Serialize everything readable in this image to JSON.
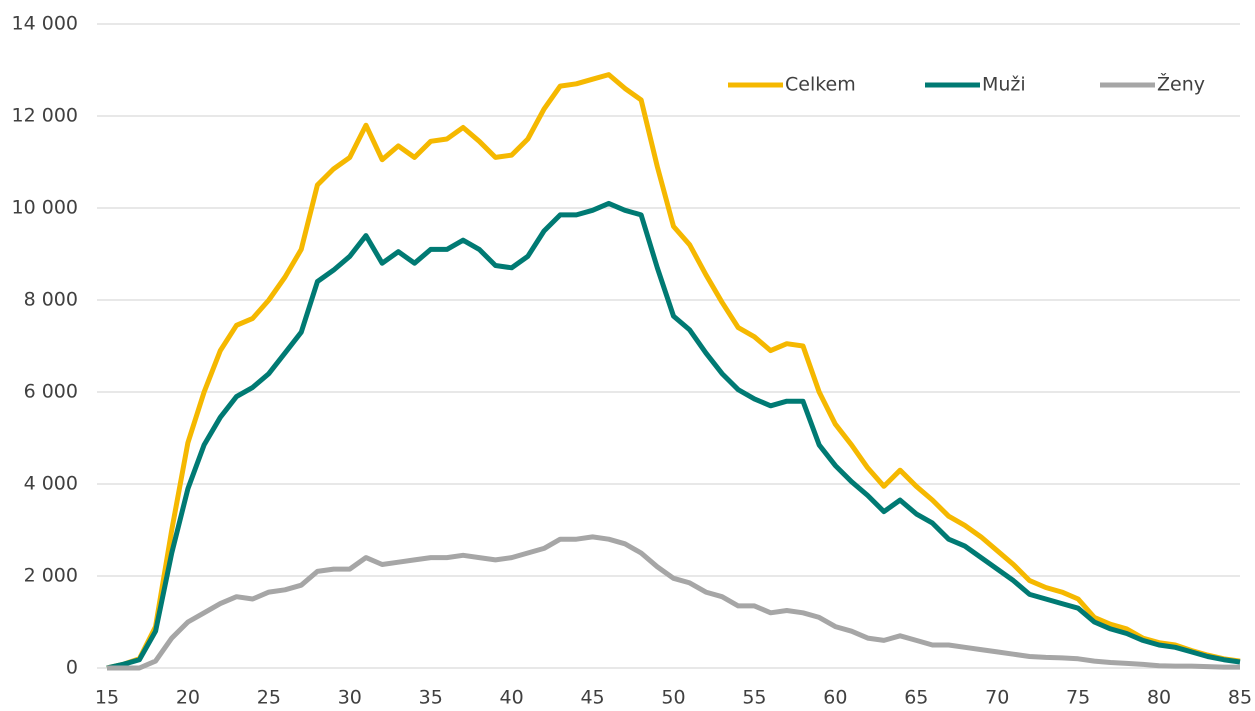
{
  "chart_data": {
    "type": "line",
    "x": [
      15,
      16,
      17,
      18,
      19,
      20,
      21,
      22,
      23,
      24,
      25,
      26,
      27,
      28,
      29,
      30,
      31,
      32,
      33,
      34,
      35,
      36,
      37,
      38,
      39,
      40,
      41,
      42,
      43,
      44,
      45,
      46,
      47,
      48,
      49,
      50,
      51,
      52,
      53,
      54,
      55,
      56,
      57,
      58,
      59,
      60,
      61,
      62,
      63,
      64,
      65,
      66,
      67,
      68,
      69,
      70,
      71,
      72,
      73,
      74,
      75,
      76,
      77,
      78,
      79,
      80,
      81,
      82,
      83,
      84,
      85
    ],
    "series": [
      {
        "name": "Celkem",
        "color": "#f5b800",
        "values": [
          0,
          80,
          200,
          900,
          3000,
          4900,
          6000,
          6900,
          7450,
          7600,
          8000,
          8500,
          9100,
          10500,
          10850,
          11100,
          11800,
          11050,
          11350,
          11100,
          11450,
          11500,
          11750,
          11450,
          11100,
          11150,
          11500,
          12150,
          12650,
          12700,
          12800,
          12900,
          12600,
          12350,
          10900,
          9600,
          9200,
          8550,
          7950,
          7400,
          7200,
          6900,
          7050,
          7000,
          6000,
          5300,
          4850,
          4350,
          3950,
          4300,
          3950,
          3650,
          3300,
          3100,
          2850,
          2550,
          2250,
          1900,
          1750,
          1650,
          1500,
          1100,
          950,
          850,
          650,
          550,
          500,
          380,
          280,
          200,
          150
        ]
      },
      {
        "name": "Muži",
        "color": "#007a73",
        "values": [
          0,
          80,
          180,
          800,
          2500,
          3900,
          4850,
          5450,
          5900,
          6100,
          6400,
          6850,
          7300,
          8400,
          8650,
          8950,
          9400,
          8800,
          9050,
          8800,
          9100,
          9100,
          9300,
          9100,
          8750,
          8700,
          8950,
          9500,
          9850,
          9850,
          9950,
          10100,
          9950,
          9850,
          8700,
          7650,
          7350,
          6850,
          6400,
          6050,
          5850,
          5700,
          5800,
          5800,
          4850,
          4400,
          4050,
          3750,
          3400,
          3650,
          3350,
          3150,
          2800,
          2650,
          2400,
          2150,
          1900,
          1600,
          1500,
          1400,
          1300,
          1000,
          850,
          750,
          600,
          500,
          450,
          350,
          250,
          180,
          130
        ]
      },
      {
        "name": "Ženy",
        "color": "#a6a6a6",
        "values": [
          0,
          0,
          0,
          150,
          650,
          1000,
          1200,
          1400,
          1550,
          1500,
          1650,
          1700,
          1800,
          2100,
          2150,
          2150,
          2400,
          2250,
          2300,
          2350,
          2400,
          2400,
          2450,
          2400,
          2350,
          2400,
          2500,
          2600,
          2800,
          2800,
          2850,
          2800,
          2700,
          2500,
          2200,
          1950,
          1850,
          1650,
          1550,
          1350,
          1350,
          1200,
          1250,
          1200,
          1100,
          900,
          800,
          650,
          600,
          700,
          600,
          500,
          500,
          450,
          400,
          350,
          300,
          250,
          230,
          220,
          200,
          150,
          120,
          100,
          80,
          50,
          40,
          40,
          30,
          20,
          20
        ]
      }
    ],
    "xlim": [
      15,
      85
    ],
    "xticks": [
      15,
      20,
      25,
      30,
      35,
      40,
      45,
      50,
      55,
      60,
      65,
      70,
      75,
      80,
      85
    ],
    "ylim": [
      0,
      14000
    ],
    "yticks": [
      0,
      {
        "value": 2000,
        "label": "2 000"
      },
      {
        "value": 4000,
        "label": "4 000"
      },
      {
        "value": 6000,
        "label": "6 000"
      },
      {
        "value": 8000,
        "label": "8 000"
      },
      {
        "value": 10000,
        "label": "10 000"
      },
      {
        "value": 12000,
        "label": "12 000"
      },
      {
        "value": 14000,
        "label": "14 000"
      }
    ],
    "grid": true,
    "legend": "top-right"
  }
}
